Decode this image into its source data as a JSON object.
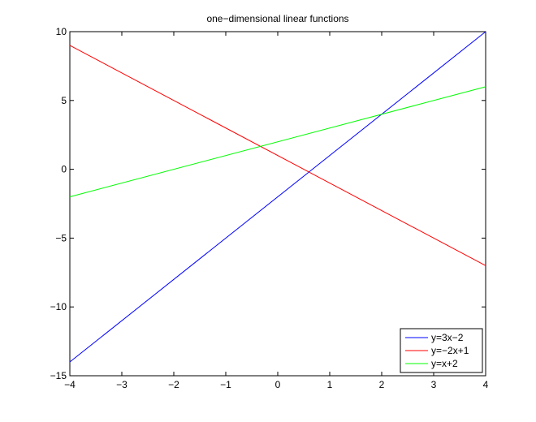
{
  "chart_data": {
    "type": "line",
    "title": "one−dimensional linear functions",
    "xlabel": "",
    "ylabel": "",
    "xlim": [
      -4,
      4
    ],
    "ylim": [
      -15,
      10
    ],
    "xticks": [
      -4,
      -3,
      -2,
      -1,
      0,
      1,
      2,
      3,
      4
    ],
    "xtick_labels": [
      "−4",
      "−3",
      "−2",
      "−1",
      "0",
      "1",
      "2",
      "3",
      "4"
    ],
    "yticks": [
      -15,
      -10,
      -5,
      0,
      5,
      10
    ],
    "ytick_labels": [
      "−15",
      "−10",
      "−5",
      "0",
      "5",
      "10"
    ],
    "grid": false,
    "legend_position": "bottom-right",
    "series": [
      {
        "name": "y=3x−2",
        "color": "#0000ff",
        "x": [
          -4,
          4
        ],
        "y": [
          -14,
          10
        ]
      },
      {
        "name": "y=−2x+1",
        "color": "#ff0000",
        "x": [
          -4,
          4
        ],
        "y": [
          9,
          -7
        ]
      },
      {
        "name": "y=x+2",
        "color": "#00ff00",
        "x": [
          -4,
          4
        ],
        "y": [
          -2,
          6
        ]
      }
    ]
  }
}
